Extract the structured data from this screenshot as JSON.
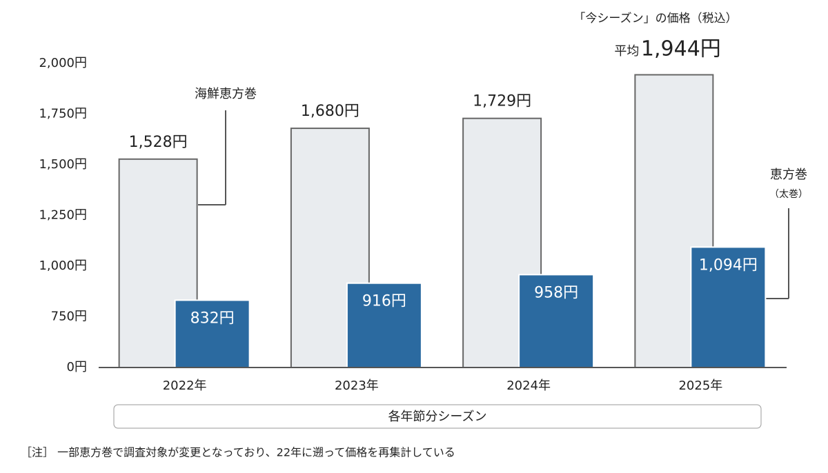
{
  "chart_data": {
    "type": "bar",
    "header": "「今シーズン」の価格（税込）",
    "highlight_prefix": "平均",
    "x_label": "各年節分シーズン",
    "note": "［注］ 一部恵方巻で調査対象が変更となっており、22年に遡って価格を再集計している",
    "categories": [
      "2022年",
      "2023年",
      "2024年",
      "2025年"
    ],
    "series": [
      {
        "name": "海鮮恵方巻",
        "color": "#e9ecef",
        "values": [
          1528,
          1680,
          1729,
          1944
        ],
        "value_labels": [
          "1,528円",
          "1,680円",
          "1,729円",
          "1,944円"
        ]
      },
      {
        "name": "恵方巻",
        "subname": "（太巻）",
        "color": "#2b6aa0",
        "values": [
          832,
          916,
          958,
          1094
        ],
        "value_labels": [
          "832円",
          "916円",
          "958円",
          "1,094円"
        ]
      }
    ],
    "ylim": [
      0,
      2000
    ],
    "yticks": [
      {
        "value": 0,
        "label": "0円"
      },
      {
        "value": 750,
        "label": "750円"
      },
      {
        "value": 1000,
        "label": "1,000円"
      },
      {
        "value": 1250,
        "label": "1,250円"
      },
      {
        "value": 1500,
        "label": "1,500円"
      },
      {
        "value": 1750,
        "label": "1,750円"
      },
      {
        "value": 2000,
        "label": "2,000円"
      }
    ],
    "axis_break": true,
    "grid": false
  }
}
